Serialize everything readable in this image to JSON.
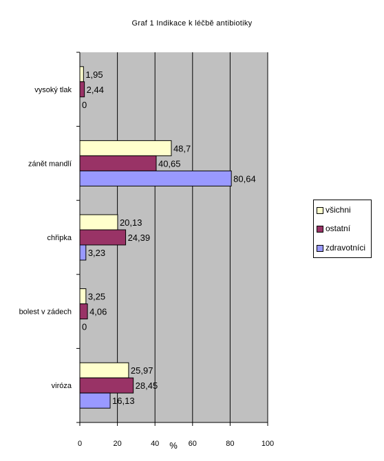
{
  "chart_data": {
    "type": "bar",
    "orientation": "horizontal",
    "title": "Graf 1 Indikace k léčbě antibiotiky",
    "categories": [
      "vysoký tlak",
      "zánět mandlí",
      "chřipka",
      "bolest v zádech",
      "viróza"
    ],
    "series": [
      {
        "name": "všichni",
        "color": "#FFFFCC",
        "values": [
          1.95,
          48.7,
          20.13,
          3.25,
          25.97
        ],
        "labels": [
          "1,95",
          "48,7",
          "20,13",
          "3,25",
          "25,97"
        ]
      },
      {
        "name": "ostatní",
        "color": "#993366",
        "values": [
          2.44,
          40.65,
          24.39,
          4.06,
          28.45
        ],
        "labels": [
          "2,44",
          "40,65",
          "24,39",
          "4,06",
          "28,45"
        ]
      },
      {
        "name": "zdravotníci",
        "color": "#9999FF",
        "values": [
          0,
          80.64,
          3.23,
          0,
          16.13
        ],
        "labels": [
          "0",
          "80,64",
          "3,23",
          "0",
          "16,13"
        ]
      }
    ],
    "xlim": [
      0,
      100
    ],
    "xticks": [
      "0",
      "20",
      "40",
      "60",
      "80",
      "100"
    ],
    "xlabel": "%",
    "plot_background": "#C0C0C0",
    "grid": true,
    "legend_position": "right"
  }
}
